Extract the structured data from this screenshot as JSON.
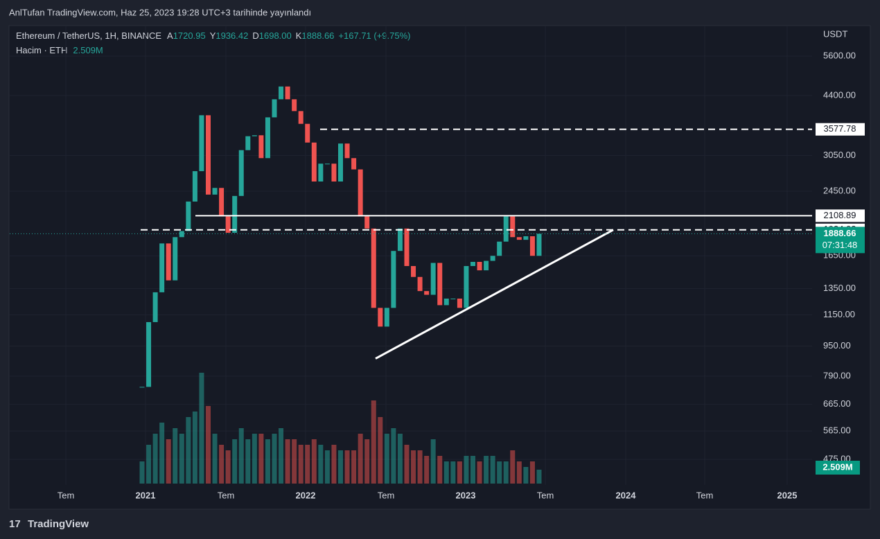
{
  "header": {
    "published": "AnlTufan TradingView.com, Haz 25, 2023 19:28 UTC+3 tarihinde yayınlandı",
    "symbol": "Ethereum / TetherUS, 1H, BINANCE",
    "ohlc": [
      {
        "key": "A",
        "value": "1720.95"
      },
      {
        "key": "Y",
        "value": "1936.42"
      },
      {
        "key": "D",
        "value": "1698.00"
      },
      {
        "key": "K",
        "value": "1888.66"
      }
    ],
    "change": "+167.71 (+9.75%)",
    "volume_label": "Hacim · ETH",
    "volume_value": "2.509M"
  },
  "price_axis": {
    "unit": "USDT",
    "log": true,
    "ticks": [
      {
        "value": 5600,
        "label": "5600.00"
      },
      {
        "value": 4400,
        "label": "4400.00"
      },
      {
        "value": 3050,
        "label": "3050.00"
      },
      {
        "value": 2450,
        "label": "2450.00"
      },
      {
        "value": 1650,
        "label": "1650.00"
      },
      {
        "value": 1350,
        "label": "1350.00"
      },
      {
        "value": 1150,
        "label": "1150.00"
      },
      {
        "value": 950,
        "label": "950.00"
      },
      {
        "value": 790,
        "label": "790.00"
      },
      {
        "value": 665,
        "label": "665.00"
      },
      {
        "value": 565,
        "label": "565.00"
      },
      {
        "value": 475,
        "label": "475.00"
      }
    ]
  },
  "time_axis": {
    "labels": [
      "Tem",
      "2021",
      "Tem",
      "2022",
      "Tem",
      "2023",
      "Tem",
      "2024",
      "Tem",
      "2025"
    ]
  },
  "levels": [
    {
      "value": 3577.78,
      "style": "dashed"
    },
    {
      "value": 2108.89,
      "style": "solid"
    },
    {
      "value": 1934.02,
      "style": "dashed"
    }
  ],
  "trendline": [
    880,
    1934
  ],
  "last_price": 1888.66,
  "countdown": "07:31:48",
  "candles": {
    "close": [
      740,
      1100,
      1320,
      1780,
      1420,
      1850,
      1920,
      2300,
      2770,
      3900,
      2400,
      2500,
      2100,
      1900,
      2380,
      3150,
      3430,
      3450,
      3000,
      3850,
      4300,
      4650,
      4300,
      4000,
      3700,
      3300,
      2600,
      2900,
      2900,
      2600,
      3280,
      3000,
      2800,
      2100,
      1950,
      1200,
      1070,
      1200,
      1700,
      1950,
      1550,
      1450,
      1330,
      1300,
      1580,
      1220,
      1270,
      1270,
      1200,
      1550,
      1590,
      1510,
      1600,
      1650,
      1800,
      2100,
      1850,
      1820,
      1860,
      1650,
      1888.66
    ],
    "volume": [
      4,
      7,
      9,
      11,
      8,
      10,
      9,
      12,
      13,
      20,
      14,
      9,
      7,
      6,
      8,
      10,
      8,
      9,
      9,
      8,
      9,
      10,
      8,
      8,
      7,
      7,
      8,
      7,
      6,
      7,
      6,
      6,
      6,
      9,
      8,
      15,
      12,
      9,
      10,
      9,
      7,
      6,
      6,
      5,
      8,
      5,
      4,
      4,
      4,
      5,
      5,
      4,
      5,
      5,
      4,
      4,
      6,
      4,
      3,
      4,
      2.509
    ]
  },
  "footer": "TradingView"
}
